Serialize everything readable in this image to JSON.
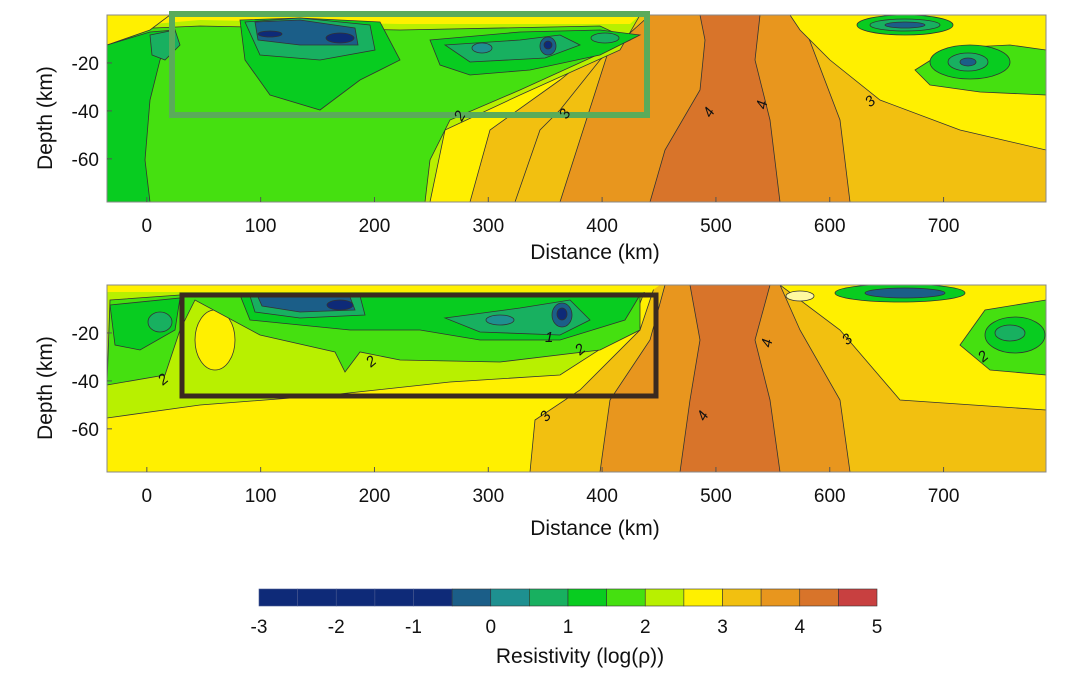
{
  "chart_data": [
    {
      "type": "heatmap",
      "panel": "top",
      "xlabel": "Distance (km)",
      "ylabel": "Depth (km)",
      "xlim": [
        -35,
        790
      ],
      "ylim": [
        -78,
        0
      ],
      "xticks": [
        "0",
        "100",
        "200",
        "300",
        "400",
        "500",
        "600",
        "700"
      ],
      "yticks": [
        "-20",
        "-40",
        "-60"
      ],
      "contour_labels": [
        "2",
        "3",
        "4",
        "4",
        "3"
      ],
      "highlight_box": {
        "color": "#5aab5a",
        "distance_range": [
          25,
          440
        ],
        "depth_range": [
          -42,
          0
        ]
      }
    },
    {
      "type": "heatmap",
      "panel": "bottom",
      "xlabel": "Distance (km)",
      "ylabel": "Depth (km)",
      "xlim": [
        -35,
        790
      ],
      "ylim": [
        -78,
        0
      ],
      "xticks": [
        "0",
        "100",
        "200",
        "300",
        "400",
        "500",
        "600",
        "700"
      ],
      "yticks": [
        "-20",
        "-40",
        "-60"
      ],
      "contour_labels": [
        "2",
        "2",
        "1",
        "2",
        "3",
        "4",
        "4",
        "3",
        "2"
      ],
      "highlight_box": {
        "color": "#3a2a20",
        "distance_range": [
          33,
          448
        ],
        "depth_range": [
          -46,
          -4
        ]
      }
    }
  ],
  "colorbar": {
    "label": "Resistivity (log(ρ))",
    "range": [
      -3,
      5
    ],
    "ticks": [
      "-3",
      "-2",
      "-1",
      "0",
      "1",
      "2",
      "3",
      "4",
      "5"
    ],
    "colors": [
      "#0e2a78",
      "#0e2a78",
      "#0e2a78",
      "#0e2a78",
      "#0e2a78",
      "#1b5e88",
      "#1e9090",
      "#18b060",
      "#08cc20",
      "#45e010",
      "#b8f000",
      "#fff000",
      "#f2c010",
      "#e8961e",
      "#d8742a",
      "#c84040"
    ]
  }
}
